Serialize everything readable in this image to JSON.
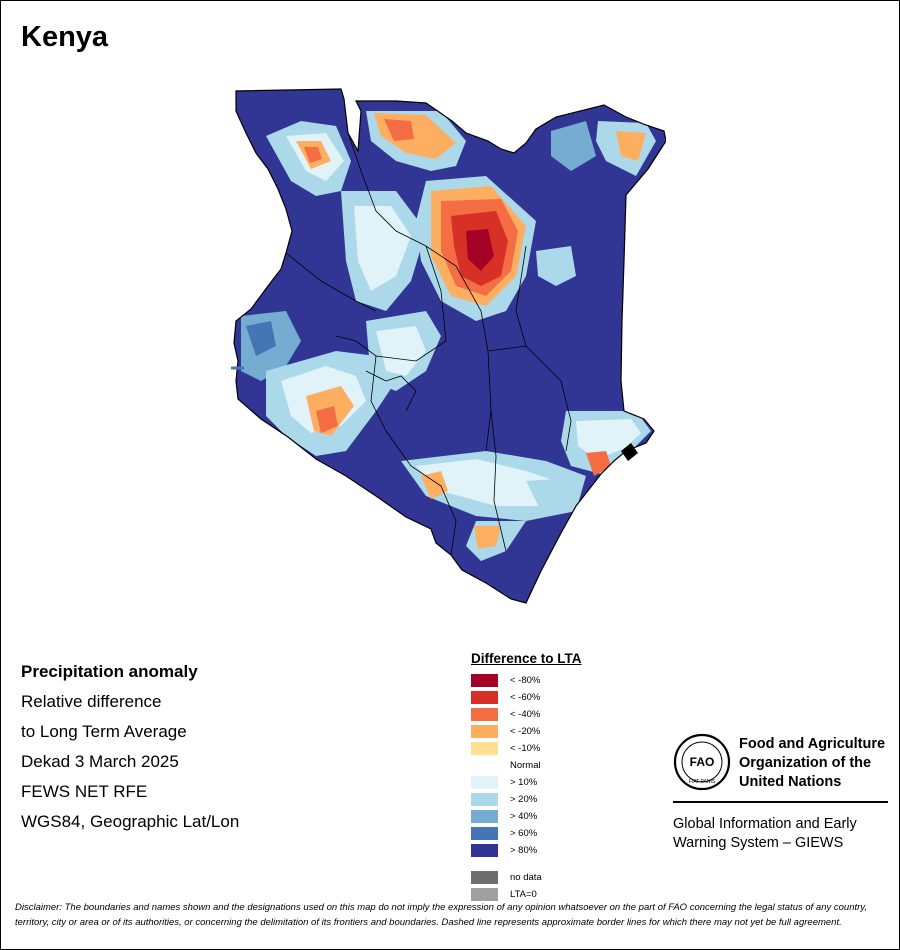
{
  "title": "Kenya",
  "info": {
    "heading": "Precipitation anomaly",
    "line1": "Relative difference",
    "line2": "to Long Term Average",
    "line3": "Dekad 3 March 2025",
    "line4": "FEWS NET RFE",
    "line5": "WGS84, Geographic Lat/Lon"
  },
  "legend": {
    "title": "Difference to LTA",
    "classes": [
      {
        "label": "< -80%",
        "color": "#a50026"
      },
      {
        "label": "< -60%",
        "color": "#d73027"
      },
      {
        "label": "< -40%",
        "color": "#f46d43"
      },
      {
        "label": "< -20%",
        "color": "#fdae61"
      },
      {
        "label": "< -10%",
        "color": "#fee090"
      },
      {
        "label": "Normal",
        "color": "#ffffff"
      },
      {
        "label": "> 10%",
        "color": "#e0f3f8"
      },
      {
        "label": "> 20%",
        "color": "#abd9e9"
      },
      {
        "label": "> 40%",
        "color": "#74add1"
      },
      {
        "label": "> 60%",
        "color": "#4575b4"
      },
      {
        "label": "> 80%",
        "color": "#313695"
      }
    ],
    "nodata": {
      "label": "no data",
      "color": "#6e6e6e"
    },
    "lta0": {
      "label": "LTA=0",
      "color": "#a0a0a0"
    }
  },
  "org": {
    "name_line1": "Food and Agriculture",
    "name_line2": "Organization of the",
    "name_line3": "United Nations",
    "system_line1": "Global Information and Early",
    "system_line2": "Warning System – GIEWS",
    "emblem_text": "FAO",
    "emblem_motto": "FIAT PANIS"
  },
  "disclaimer": "Disclaimer: The boundaries and names shown and the designations used on this map do not imply the expression of any opinion whatsoever on the part of FAO concerning the legal status of any country, territory, city or area or of its authorities, or concerning the delimitation of its frontiers and boundaries. Dashed line represents approximate border lines for which there may not yet be full agreement."
}
